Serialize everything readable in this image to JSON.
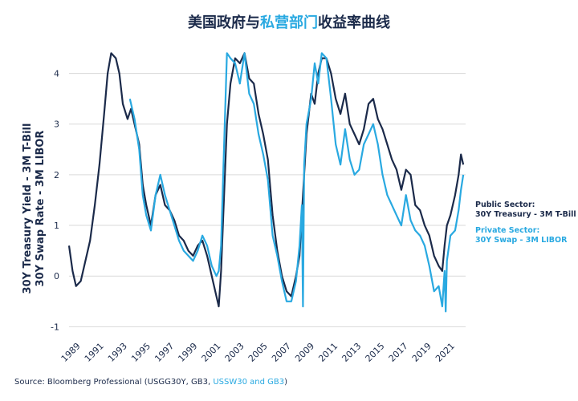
{
  "title": {
    "part1": "美国政府与",
    "part2": "私营部门",
    "part3": "收益率曲线"
  },
  "colors": {
    "public": "#1b2a4a",
    "private": "#29a9e1",
    "grid": "#d9d9d9"
  },
  "legend": {
    "public_line1": "Public Sector:",
    "public_line2": "30Y Treasury - 3M T-Bill",
    "private_line1": "Private Sector:",
    "private_line2": "30Y Swap - 3M LIBOR"
  },
  "source": {
    "prefix": "Source: Bloomberg Professional (USGG30Y, GB3, ",
    "accent": "USSW30 and GB3",
    "suffix": ")"
  },
  "chart_data": {
    "type": "line",
    "ylabel_line1": "30Y Treasury Yield - 3M T-Bill",
    "ylabel_line2": "30Y Swap Rate - 3M LIBOR",
    "xlim": [
      1988.0,
      2021.9
    ],
    "ylim": [
      -1.2,
      4.5
    ],
    "grid": true,
    "legend_position": "right",
    "y_ticks": [
      -1,
      0,
      1,
      2,
      3,
      4
    ],
    "y_tick_labels": [
      "-1",
      "0",
      "1",
      "2",
      "3",
      "4"
    ],
    "x_ticks": [
      1989,
      1991,
      1993,
      1995,
      1997,
      1999,
      2001,
      2003,
      2005,
      2007,
      2009,
      2011,
      2013,
      2015,
      2017,
      2019,
      2021
    ],
    "x_tick_labels": [
      "1989",
      "1991",
      "1993",
      "1995",
      "1997",
      "1999",
      "2001",
      "2003",
      "2005",
      "2007",
      "2009",
      "2011",
      "2013",
      "2015",
      "2017",
      "2019",
      "2021"
    ],
    "series": [
      {
        "name": "Public Sector: 30Y Treasury - 3M T-Bill",
        "x": [
          1988.0,
          1988.3,
          1988.6,
          1989.0,
          1989.4,
          1989.8,
          1990.2,
          1990.6,
          1991.0,
          1991.3,
          1991.6,
          1992.0,
          1992.3,
          1992.6,
          1993.0,
          1993.3,
          1993.6,
          1994.0,
          1994.3,
          1994.6,
          1995.0,
          1995.4,
          1995.8,
          1996.2,
          1996.6,
          1997.0,
          1997.4,
          1997.8,
          1998.2,
          1998.6,
          1999.0,
          1999.4,
          1999.8,
          2000.2,
          2000.6,
          2000.8,
          2001.0,
          2001.2,
          2001.5,
          2001.8,
          2002.2,
          2002.6,
          2003.0,
          2003.4,
          2003.8,
          2004.2,
          2004.6,
          2005.0,
          2005.4,
          2005.8,
          2006.2,
          2006.6,
          2007.0,
          2007.4,
          2007.7,
          2008.0,
          2008.3,
          2008.7,
          2009.0,
          2009.3,
          2009.6,
          2010.0,
          2010.4,
          2010.8,
          2011.2,
          2011.6,
          2012.0,
          2012.4,
          2012.8,
          2013.2,
          2013.6,
          2014.0,
          2014.4,
          2014.8,
          2015.2,
          2015.6,
          2016.0,
          2016.4,
          2016.8,
          2017.2,
          2017.6,
          2018.0,
          2018.4,
          2018.8,
          2019.2,
          2019.6,
          2019.9,
          2020.1,
          2020.3,
          2020.6,
          2021.0,
          2021.3,
          2021.5,
          2021.7
        ],
        "values": [
          0.6,
          0.1,
          -0.2,
          -0.1,
          0.3,
          0.7,
          1.4,
          2.2,
          3.2,
          4.0,
          4.4,
          4.3,
          4.0,
          3.4,
          3.1,
          3.3,
          3.0,
          2.6,
          1.8,
          1.4,
          1.0,
          1.6,
          1.8,
          1.4,
          1.3,
          1.1,
          0.8,
          0.7,
          0.5,
          0.4,
          0.6,
          0.7,
          0.4,
          0.0,
          -0.4,
          -0.6,
          0.1,
          1.3,
          3.0,
          3.8,
          4.3,
          4.2,
          4.4,
          3.9,
          3.8,
          3.2,
          2.8,
          2.3,
          1.2,
          0.5,
          0.0,
          -0.3,
          -0.4,
          0.0,
          0.4,
          1.6,
          2.8,
          3.6,
          3.4,
          4.0,
          4.3,
          4.3,
          4.0,
          3.5,
          3.2,
          3.6,
          3.0,
          2.8,
          2.6,
          2.9,
          3.4,
          3.5,
          3.1,
          2.9,
          2.6,
          2.3,
          2.1,
          1.7,
          2.1,
          2.0,
          1.4,
          1.3,
          1.0,
          0.8,
          0.4,
          0.2,
          0.1,
          0.6,
          1.0,
          1.2,
          1.6,
          2.0,
          2.4,
          2.2
        ]
      },
      {
        "name": "Private Sector: 30Y Swap - 3M LIBOR",
        "x": [
          1993.2,
          1993.6,
          1994.0,
          1994.3,
          1994.6,
          1995.0,
          1995.4,
          1995.8,
          1996.2,
          1996.6,
          1997.0,
          1997.4,
          1997.8,
          1998.2,
          1998.6,
          1999.0,
          1999.4,
          1999.8,
          2000.2,
          2000.6,
          2000.8,
          2001.0,
          2001.2,
          2001.5,
          2001.8,
          2002.2,
          2002.6,
          2003.0,
          2003.4,
          2003.8,
          2004.2,
          2004.6,
          2005.0,
          2005.4,
          2005.8,
          2006.2,
          2006.6,
          2007.0,
          2007.4,
          2007.7,
          2007.9,
          2008.0,
          2008.1,
          2008.3,
          2008.7,
          2009.0,
          2009.3,
          2009.6,
          2010.0,
          2010.4,
          2010.8,
          2011.2,
          2011.6,
          2012.0,
          2012.4,
          2012.8,
          2013.2,
          2013.6,
          2014.0,
          2014.4,
          2014.8,
          2015.2,
          2015.6,
          2016.0,
          2016.4,
          2016.8,
          2017.2,
          2017.6,
          2018.0,
          2018.4,
          2018.8,
          2019.2,
          2019.6,
          2019.9,
          2020.1,
          2020.2,
          2020.3,
          2020.6,
          2021.0,
          2021.3,
          2021.5,
          2021.7
        ],
        "values": [
          3.5,
          3.1,
          2.5,
          1.6,
          1.2,
          0.9,
          1.6,
          2.0,
          1.6,
          1.3,
          1.0,
          0.7,
          0.5,
          0.4,
          0.3,
          0.5,
          0.8,
          0.6,
          0.2,
          0.0,
          0.1,
          0.6,
          2.2,
          4.4,
          4.3,
          4.2,
          3.8,
          4.4,
          3.6,
          3.4,
          2.8,
          2.4,
          1.9,
          0.8,
          0.4,
          -0.1,
          -0.5,
          -0.5,
          -0.1,
          0.6,
          1.4,
          -0.6,
          2.2,
          3.0,
          3.5,
          4.2,
          3.8,
          4.4,
          4.3,
          3.5,
          2.6,
          2.2,
          2.9,
          2.3,
          2.0,
          2.1,
          2.6,
          2.8,
          3.0,
          2.6,
          2.0,
          1.6,
          1.4,
          1.2,
          1.0,
          1.6,
          1.1,
          0.9,
          0.8,
          0.6,
          0.2,
          -0.3,
          -0.2,
          -0.6,
          0.1,
          -0.7,
          0.3,
          0.8,
          0.9,
          1.3,
          1.7,
          2.0
        ]
      }
    ]
  }
}
